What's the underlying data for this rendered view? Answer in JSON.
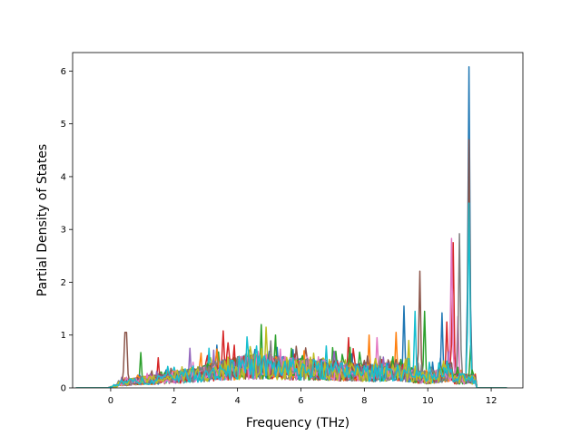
{
  "chart_data": {
    "type": "line",
    "title": "",
    "xlabel": "Frequency (THz)",
    "ylabel": "Partial Density of States",
    "xlim": [
      -1.2,
      13.0
    ],
    "ylim": [
      0,
      6.35
    ],
    "xticks": [
      0,
      2,
      4,
      6,
      8,
      10,
      12
    ],
    "yticks": [
      0,
      1,
      2,
      3,
      4,
      5,
      6
    ],
    "grid": false,
    "legend": "none",
    "x_range_of_data": [
      -1.1,
      12.5
    ],
    "series_count": 20,
    "series_colors": [
      "#1f77b4",
      "#ff7f0e",
      "#2ca02c",
      "#d62728",
      "#9467bd",
      "#8c564b",
      "#e377c2",
      "#7f7f7f",
      "#bcbd22",
      "#17becf",
      "#1f77b4",
      "#ff7f0e",
      "#2ca02c",
      "#d62728",
      "#9467bd",
      "#8c564b",
      "#e377c2",
      "#7f7f7f",
      "#bcbd22",
      "#17becf"
    ],
    "peaks": [
      {
        "series": 0,
        "x": 11.28,
        "y": 6.08
      },
      {
        "series": 5,
        "x": 11.28,
        "y": 4.7
      },
      {
        "series": 9,
        "x": 11.28,
        "y": 3.5
      },
      {
        "series": 6,
        "x": 10.75,
        "y": 2.83
      },
      {
        "series": 3,
        "x": 10.82,
        "y": 2.75
      },
      {
        "series": 7,
        "x": 10.98,
        "y": 2.92
      },
      {
        "series": 5,
        "x": 9.73,
        "y": 2.21
      },
      {
        "series": 0,
        "x": 9.25,
        "y": 1.55
      },
      {
        "series": 9,
        "x": 9.58,
        "y": 1.45
      },
      {
        "series": 2,
        "x": 9.9,
        "y": 1.45
      },
      {
        "series": 0,
        "x": 10.45,
        "y": 1.42
      },
      {
        "series": 6,
        "x": 10.95,
        "y": 1.35
      },
      {
        "series": 3,
        "x": 10.6,
        "y": 1.25
      },
      {
        "series": 5,
        "x": 0.45,
        "y": 1.05
      },
      {
        "series": 5,
        "x": 0.52,
        "y": 1.05
      },
      {
        "series": 2,
        "x": 0.95,
        "y": 0.67
      },
      {
        "series": 3,
        "x": 1.5,
        "y": 0.57
      },
      {
        "series": 2,
        "x": 4.75,
        "y": 1.2
      },
      {
        "series": 8,
        "x": 4.9,
        "y": 1.15
      },
      {
        "series": 3,
        "x": 3.55,
        "y": 1.08
      },
      {
        "series": 2,
        "x": 5.2,
        "y": 1.0
      },
      {
        "series": 1,
        "x": 8.15,
        "y": 1.0
      },
      {
        "series": 3,
        "x": 7.5,
        "y": 0.95
      },
      {
        "series": 6,
        "x": 8.4,
        "y": 0.95
      },
      {
        "series": 1,
        "x": 9.0,
        "y": 1.05
      },
      {
        "series": 8,
        "x": 9.4,
        "y": 0.9
      },
      {
        "series": 4,
        "x": 2.5,
        "y": 0.75
      },
      {
        "series": 9,
        "x": 3.1,
        "y": 0.75
      },
      {
        "series": 2,
        "x": 11.37,
        "y": 0.8
      }
    ]
  }
}
